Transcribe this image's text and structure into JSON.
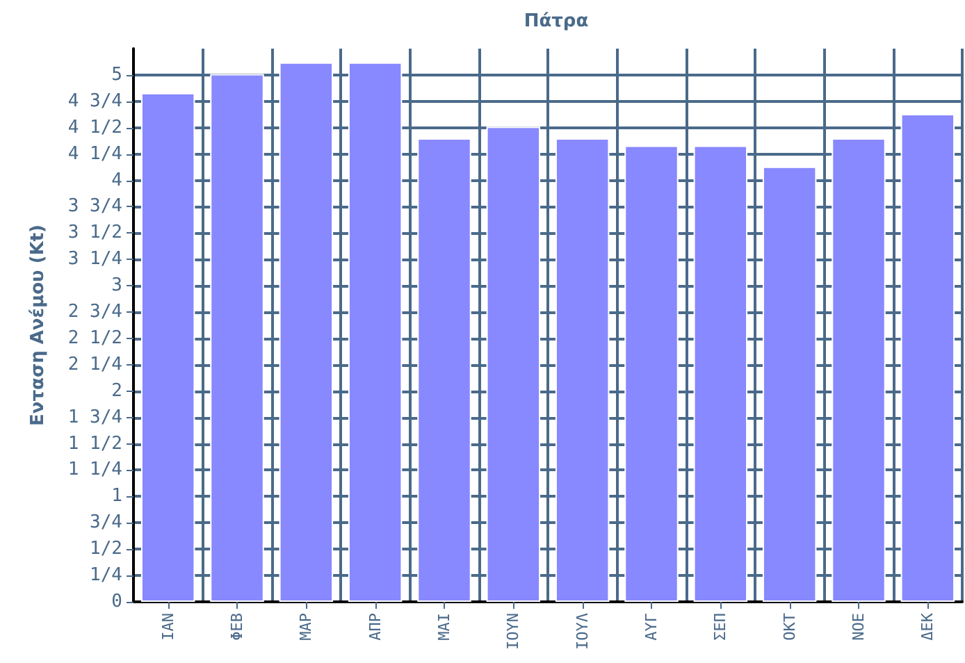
{
  "chart_data": {
    "type": "bar",
    "title": "Πάτρα",
    "ylabel": "Ενταση Ανέμου (Kt)",
    "categories": [
      "ΙΑΝ",
      "ΦΕΒ",
      "ΜΑΡ",
      "ΑΠΡ",
      "ΜΑΙ",
      "ΙΟΥΝ",
      "ΙΟΥΛ",
      "ΑΥΓ",
      "ΣΕΠ",
      "ΟΚΤ",
      "ΝΟΕ",
      "ΔΕΚ"
    ],
    "values": [
      4.83,
      5.01,
      5.12,
      5.12,
      4.4,
      4.51,
      4.4,
      4.33,
      4.33,
      4.13,
      4.4,
      4.63
    ],
    "color": "#8888ff",
    "ylim": [
      0,
      5.25
    ],
    "yticks": [
      0,
      {
        "value": 0.25,
        "label": "1/4"
      },
      {
        "value": 0.5,
        "label": "1/2"
      },
      {
        "value": 0.75,
        "label": "3/4"
      },
      1,
      {
        "value": 1.25,
        "label": "1 1/4"
      },
      {
        "value": 1.5,
        "label": "1 1/2"
      },
      {
        "value": 1.75,
        "label": "1 3/4"
      },
      2,
      {
        "value": 2.25,
        "label": "2 1/4"
      },
      {
        "value": 2.5,
        "label": "2 1/2"
      },
      {
        "value": 2.75,
        "label": "2 3/4"
      },
      3,
      {
        "value": 3.25,
        "label": "3 1/4"
      },
      {
        "value": 3.5,
        "label": "3 1/2"
      },
      {
        "value": 3.75,
        "label": "3 3/4"
      },
      4,
      {
        "value": 4.25,
        "label": "4 1/4"
      },
      {
        "value": 4.5,
        "label": "4 1/2"
      },
      {
        "value": 4.75,
        "label": "4 3/4"
      },
      5
    ],
    "grid": true
  }
}
